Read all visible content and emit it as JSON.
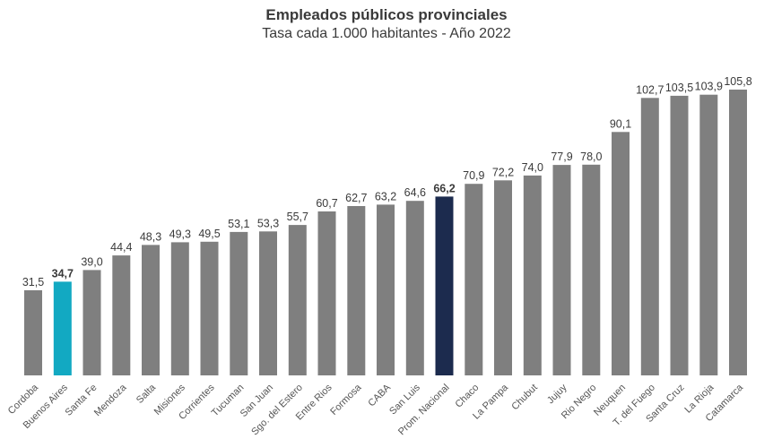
{
  "chart_data": {
    "type": "bar",
    "title": "Empleados públicos provinciales",
    "subtitle": "Tasa cada 1.000 habitantes - Año 2022",
    "xlabel": "",
    "ylabel": "",
    "ylim": [
      0,
      110
    ],
    "grid": false,
    "legend": "none",
    "categories": [
      "Cordoba",
      "Buenos Aires",
      "Santa Fe",
      "Mendoza",
      "Salta",
      "Misiones",
      "Corrientes",
      "Tucuman",
      "San Juan",
      "Sgo. del Estero",
      "Entre Rios",
      "Formosa",
      "CABA",
      "San Luis",
      "Prom. Nacional",
      "Chaco",
      "La Pampa",
      "Chubut",
      "Jujuy",
      "Rio Negro",
      "Neuquen",
      "T. del Fuego",
      "Santa Cruz",
      "La Rioja",
      "Catamarca"
    ],
    "values": [
      31.5,
      34.7,
      39.0,
      44.4,
      48.3,
      49.3,
      49.5,
      53.1,
      53.3,
      55.7,
      60.7,
      62.7,
      63.2,
      64.6,
      66.2,
      70.9,
      72.2,
      74.0,
      77.9,
      78.0,
      90.1,
      102.7,
      103.5,
      103.9,
      105.8
    ],
    "value_labels": [
      "31,5",
      "34,7",
      "39,0",
      "44,4",
      "48,3",
      "49,3",
      "49,5",
      "53,1",
      "53,3",
      "55,7",
      "60,7",
      "62,7",
      "63,2",
      "64,6",
      "66,2",
      "70,9",
      "72,2",
      "74,0",
      "77,9",
      "78,0",
      "90,1",
      "102,7",
      "103,5",
      "103,9",
      "105,8"
    ],
    "highlights": {
      "Buenos Aires": "#12a9c2",
      "Prom. Nacional": "#1c2b4e"
    },
    "default_color": "#7f7f7f"
  }
}
